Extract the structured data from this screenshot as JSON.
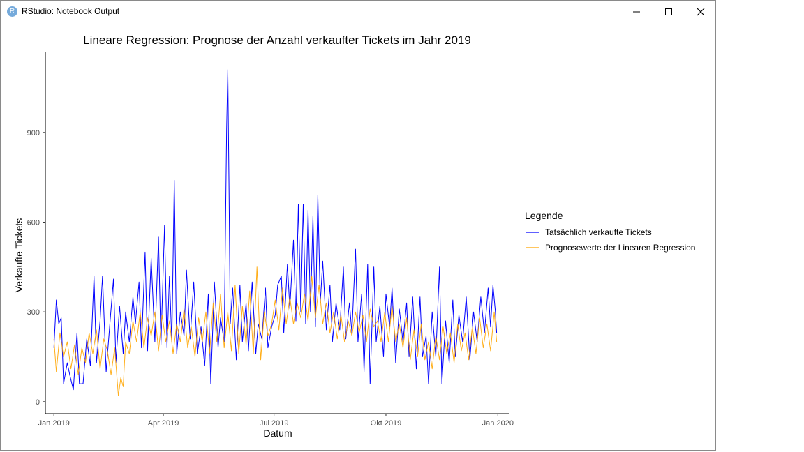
{
  "window": {
    "title": "RStudio: Notebook Output",
    "icon": "rstudio-icon"
  },
  "colors": {
    "actual": "#0000ff",
    "predicted": "#ffa500",
    "axis": "#000000",
    "tick_text": "#4d4d4d"
  },
  "chart_data": {
    "type": "line",
    "title": "Lineare Regression: Prognose der Anzahl verkaufter Tickets im Jahr 2019",
    "xlabel": "Datum",
    "ylabel": "Verkaufte Tickets",
    "x_range": [
      "2018-12-25",
      "2020-01-10"
    ],
    "ylim": [
      -40,
      1170
    ],
    "y_ticks": [
      0,
      300,
      600,
      900
    ],
    "x_ticks": [
      {
        "date": "2019-01-01",
        "label": "Jan 2019"
      },
      {
        "date": "2019-04-01",
        "label": "Apr 2019"
      },
      {
        "date": "2019-07-01",
        "label": "Jul 2019"
      },
      {
        "date": "2019-10-01",
        "label": "Okt 2019"
      },
      {
        "date": "2020-01-01",
        "label": "Jan 2020"
      }
    ],
    "grid": false,
    "legend": {
      "title": "Legende",
      "position": "right"
    },
    "series": [
      {
        "name": "Tatsächlich verkaufte Tickets",
        "color": "#0000ff",
        "points": [
          [
            "2019-01-01",
            180
          ],
          [
            "2019-01-03",
            340
          ],
          [
            "2019-01-05",
            260
          ],
          [
            "2019-01-07",
            280
          ],
          [
            "2019-01-09",
            60
          ],
          [
            "2019-01-12",
            130
          ],
          [
            "2019-01-14",
            90
          ],
          [
            "2019-01-17",
            40
          ],
          [
            "2019-01-20",
            230
          ],
          [
            "2019-01-22",
            60
          ],
          [
            "2019-01-25",
            60
          ],
          [
            "2019-01-28",
            210
          ],
          [
            "2019-01-31",
            120
          ],
          [
            "2019-02-03",
            420
          ],
          [
            "2019-02-05",
            130
          ],
          [
            "2019-02-08",
            270
          ],
          [
            "2019-02-10",
            420
          ],
          [
            "2019-02-13",
            100
          ],
          [
            "2019-02-16",
            260
          ],
          [
            "2019-02-19",
            410
          ],
          [
            "2019-02-21",
            130
          ],
          [
            "2019-02-24",
            320
          ],
          [
            "2019-02-27",
            160
          ],
          [
            "2019-03-01",
            300
          ],
          [
            "2019-03-04",
            200
          ],
          [
            "2019-03-07",
            350
          ],
          [
            "2019-03-09",
            260
          ],
          [
            "2019-03-12",
            400
          ],
          [
            "2019-03-14",
            180
          ],
          [
            "2019-03-17",
            500
          ],
          [
            "2019-03-19",
            170
          ],
          [
            "2019-03-22",
            480
          ],
          [
            "2019-03-25",
            200
          ],
          [
            "2019-03-28",
            550
          ],
          [
            "2019-03-30",
            190
          ],
          [
            "2019-04-02",
            590
          ],
          [
            "2019-04-04",
            180
          ],
          [
            "2019-04-06",
            420
          ],
          [
            "2019-04-08",
            200
          ],
          [
            "2019-04-10",
            740
          ],
          [
            "2019-04-12",
            160
          ],
          [
            "2019-04-15",
            300
          ],
          [
            "2019-04-18",
            220
          ],
          [
            "2019-04-20",
            440
          ],
          [
            "2019-04-23",
            210
          ],
          [
            "2019-04-26",
            400
          ],
          [
            "2019-04-29",
            160
          ],
          [
            "2019-05-02",
            250
          ],
          [
            "2019-05-05",
            120
          ],
          [
            "2019-05-08",
            360
          ],
          [
            "2019-05-10",
            60
          ],
          [
            "2019-05-13",
            400
          ],
          [
            "2019-05-16",
            180
          ],
          [
            "2019-05-18",
            280
          ],
          [
            "2019-05-21",
            200
          ],
          [
            "2019-05-23",
            910
          ],
          [
            "2019-05-24",
            1110
          ],
          [
            "2019-05-25",
            700
          ],
          [
            "2019-05-26",
            260
          ],
          [
            "2019-05-28",
            380
          ],
          [
            "2019-05-31",
            140
          ],
          [
            "2019-06-03",
            390
          ],
          [
            "2019-06-05",
            200
          ],
          [
            "2019-06-08",
            330
          ],
          [
            "2019-06-10",
            170
          ],
          [
            "2019-06-13",
            400
          ],
          [
            "2019-06-16",
            160
          ],
          [
            "2019-06-18",
            260
          ],
          [
            "2019-06-21",
            210
          ],
          [
            "2019-06-24",
            380
          ],
          [
            "2019-06-26",
            180
          ],
          [
            "2019-06-29",
            250
          ],
          [
            "2019-07-02",
            290
          ],
          [
            "2019-07-04",
            390
          ],
          [
            "2019-07-07",
            420
          ],
          [
            "2019-07-09",
            230
          ],
          [
            "2019-07-12",
            460
          ],
          [
            "2019-07-14",
            310
          ],
          [
            "2019-07-17",
            540
          ],
          [
            "2019-07-19",
            270
          ],
          [
            "2019-07-21",
            660
          ],
          [
            "2019-07-23",
            300
          ],
          [
            "2019-07-25",
            660
          ],
          [
            "2019-07-27",
            260
          ],
          [
            "2019-07-29",
            640
          ],
          [
            "2019-07-31",
            300
          ],
          [
            "2019-08-02",
            620
          ],
          [
            "2019-08-04",
            250
          ],
          [
            "2019-08-06",
            690
          ],
          [
            "2019-08-08",
            330
          ],
          [
            "2019-08-10",
            470
          ],
          [
            "2019-08-13",
            240
          ],
          [
            "2019-08-16",
            390
          ],
          [
            "2019-08-18",
            200
          ],
          [
            "2019-08-21",
            330
          ],
          [
            "2019-08-24",
            240
          ],
          [
            "2019-08-27",
            450
          ],
          [
            "2019-08-29",
            210
          ],
          [
            "2019-09-01",
            330
          ],
          [
            "2019-09-03",
            230
          ],
          [
            "2019-09-06",
            510
          ],
          [
            "2019-09-08",
            200
          ],
          [
            "2019-09-11",
            360
          ],
          [
            "2019-09-13",
            100
          ],
          [
            "2019-09-16",
            460
          ],
          [
            "2019-09-18",
            60
          ],
          [
            "2019-09-21",
            450
          ],
          [
            "2019-09-23",
            200
          ],
          [
            "2019-09-26",
            320
          ],
          [
            "2019-09-29",
            150
          ],
          [
            "2019-10-01",
            360
          ],
          [
            "2019-10-04",
            250
          ],
          [
            "2019-10-06",
            380
          ],
          [
            "2019-10-09",
            130
          ],
          [
            "2019-10-12",
            310
          ],
          [
            "2019-10-15",
            200
          ],
          [
            "2019-10-18",
            330
          ],
          [
            "2019-10-20",
            150
          ],
          [
            "2019-10-23",
            350
          ],
          [
            "2019-10-26",
            110
          ],
          [
            "2019-10-29",
            350
          ],
          [
            "2019-10-31",
            150
          ],
          [
            "2019-11-03",
            220
          ],
          [
            "2019-11-05",
            60
          ],
          [
            "2019-11-08",
            300
          ],
          [
            "2019-11-11",
            150
          ],
          [
            "2019-11-14",
            450
          ],
          [
            "2019-11-16",
            60
          ],
          [
            "2019-11-19",
            270
          ],
          [
            "2019-11-22",
            130
          ],
          [
            "2019-11-25",
            340
          ],
          [
            "2019-11-27",
            150
          ],
          [
            "2019-11-30",
            290
          ],
          [
            "2019-12-03",
            200
          ],
          [
            "2019-12-06",
            350
          ],
          [
            "2019-12-09",
            140
          ],
          [
            "2019-12-12",
            300
          ],
          [
            "2019-12-15",
            200
          ],
          [
            "2019-12-18",
            350
          ],
          [
            "2019-12-21",
            230
          ],
          [
            "2019-12-24",
            380
          ],
          [
            "2019-12-26",
            250
          ],
          [
            "2019-12-28",
            390
          ],
          [
            "2019-12-30",
            300
          ],
          [
            "2019-12-31",
            230
          ]
        ]
      },
      {
        "name": "Prognosewerte der Linearen Regression",
        "color": "#ffa500",
        "points": [
          [
            "2019-01-01",
            210
          ],
          [
            "2019-01-03",
            100
          ],
          [
            "2019-01-06",
            230
          ],
          [
            "2019-01-09",
            150
          ],
          [
            "2019-01-12",
            200
          ],
          [
            "2019-01-15",
            110
          ],
          [
            "2019-01-18",
            190
          ],
          [
            "2019-01-21",
            90
          ],
          [
            "2019-01-24",
            180
          ],
          [
            "2019-01-27",
            130
          ],
          [
            "2019-01-30",
            230
          ],
          [
            "2019-02-02",
            160
          ],
          [
            "2019-02-05",
            240
          ],
          [
            "2019-02-08",
            110
          ],
          [
            "2019-02-11",
            210
          ],
          [
            "2019-02-14",
            170
          ],
          [
            "2019-02-17",
            90
          ],
          [
            "2019-02-20",
            180
          ],
          [
            "2019-02-23",
            20
          ],
          [
            "2019-02-25",
            80
          ],
          [
            "2019-02-27",
            50
          ],
          [
            "2019-03-01",
            200
          ],
          [
            "2019-03-04",
            160
          ],
          [
            "2019-03-07",
            270
          ],
          [
            "2019-03-10",
            200
          ],
          [
            "2019-03-13",
            300
          ],
          [
            "2019-03-16",
            180
          ],
          [
            "2019-03-19",
            280
          ],
          [
            "2019-03-22",
            220
          ],
          [
            "2019-03-25",
            300
          ],
          [
            "2019-03-28",
            170
          ],
          [
            "2019-03-31",
            290
          ],
          [
            "2019-04-03",
            200
          ],
          [
            "2019-04-06",
            270
          ],
          [
            "2019-04-09",
            160
          ],
          [
            "2019-04-12",
            260
          ],
          [
            "2019-04-15",
            200
          ],
          [
            "2019-04-18",
            310
          ],
          [
            "2019-04-21",
            180
          ],
          [
            "2019-04-24",
            250
          ],
          [
            "2019-04-27",
            150
          ],
          [
            "2019-04-30",
            280
          ],
          [
            "2019-05-03",
            200
          ],
          [
            "2019-05-06",
            300
          ],
          [
            "2019-05-09",
            160
          ],
          [
            "2019-05-12",
            330
          ],
          [
            "2019-05-15",
            200
          ],
          [
            "2019-05-18",
            360
          ],
          [
            "2019-05-21",
            180
          ],
          [
            "2019-05-24",
            300
          ],
          [
            "2019-05-27",
            170
          ],
          [
            "2019-05-30",
            390
          ],
          [
            "2019-06-02",
            160
          ],
          [
            "2019-06-05",
            320
          ],
          [
            "2019-06-08",
            190
          ],
          [
            "2019-06-11",
            370
          ],
          [
            "2019-06-14",
            160
          ],
          [
            "2019-06-17",
            450
          ],
          [
            "2019-06-20",
            140
          ],
          [
            "2019-06-23",
            300
          ],
          [
            "2019-06-26",
            220
          ],
          [
            "2019-06-29",
            260
          ],
          [
            "2019-07-02",
            340
          ],
          [
            "2019-07-05",
            240
          ],
          [
            "2019-07-08",
            380
          ],
          [
            "2019-07-11",
            260
          ],
          [
            "2019-07-14",
            350
          ],
          [
            "2019-07-17",
            260
          ],
          [
            "2019-07-20",
            330
          ],
          [
            "2019-07-23",
            280
          ],
          [
            "2019-07-26",
            360
          ],
          [
            "2019-07-29",
            270
          ],
          [
            "2019-08-01",
            420
          ],
          [
            "2019-08-04",
            280
          ],
          [
            "2019-08-07",
            390
          ],
          [
            "2019-08-10",
            260
          ],
          [
            "2019-08-13",
            330
          ],
          [
            "2019-08-16",
            230
          ],
          [
            "2019-08-19",
            300
          ],
          [
            "2019-08-22",
            210
          ],
          [
            "2019-08-25",
            290
          ],
          [
            "2019-08-28",
            200
          ],
          [
            "2019-08-31",
            270
          ],
          [
            "2019-09-03",
            220
          ],
          [
            "2019-09-06",
            300
          ],
          [
            "2019-09-09",
            230
          ],
          [
            "2019-09-12",
            290
          ],
          [
            "2019-09-15",
            200
          ],
          [
            "2019-09-18",
            310
          ],
          [
            "2019-09-21",
            250
          ],
          [
            "2019-09-24",
            270
          ],
          [
            "2019-09-27",
            200
          ],
          [
            "2019-09-30",
            300
          ],
          [
            "2019-10-03",
            200
          ],
          [
            "2019-10-06",
            320
          ],
          [
            "2019-10-09",
            200
          ],
          [
            "2019-10-12",
            260
          ],
          [
            "2019-10-15",
            180
          ],
          [
            "2019-10-18",
            280
          ],
          [
            "2019-10-21",
            140
          ],
          [
            "2019-10-24",
            240
          ],
          [
            "2019-10-27",
            150
          ],
          [
            "2019-10-30",
            260
          ],
          [
            "2019-11-02",
            140
          ],
          [
            "2019-11-05",
            200
          ],
          [
            "2019-11-08",
            110
          ],
          [
            "2019-11-11",
            220
          ],
          [
            "2019-11-14",
            140
          ],
          [
            "2019-11-17",
            250
          ],
          [
            "2019-11-20",
            160
          ],
          [
            "2019-11-23",
            230
          ],
          [
            "2019-11-26",
            130
          ],
          [
            "2019-11-29",
            260
          ],
          [
            "2019-12-02",
            170
          ],
          [
            "2019-12-05",
            230
          ],
          [
            "2019-12-08",
            140
          ],
          [
            "2019-12-11",
            250
          ],
          [
            "2019-12-14",
            160
          ],
          [
            "2019-12-17",
            280
          ],
          [
            "2019-12-20",
            180
          ],
          [
            "2019-12-23",
            260
          ],
          [
            "2019-12-26",
            170
          ],
          [
            "2019-12-29",
            300
          ],
          [
            "2019-12-31",
            200
          ]
        ]
      }
    ]
  }
}
